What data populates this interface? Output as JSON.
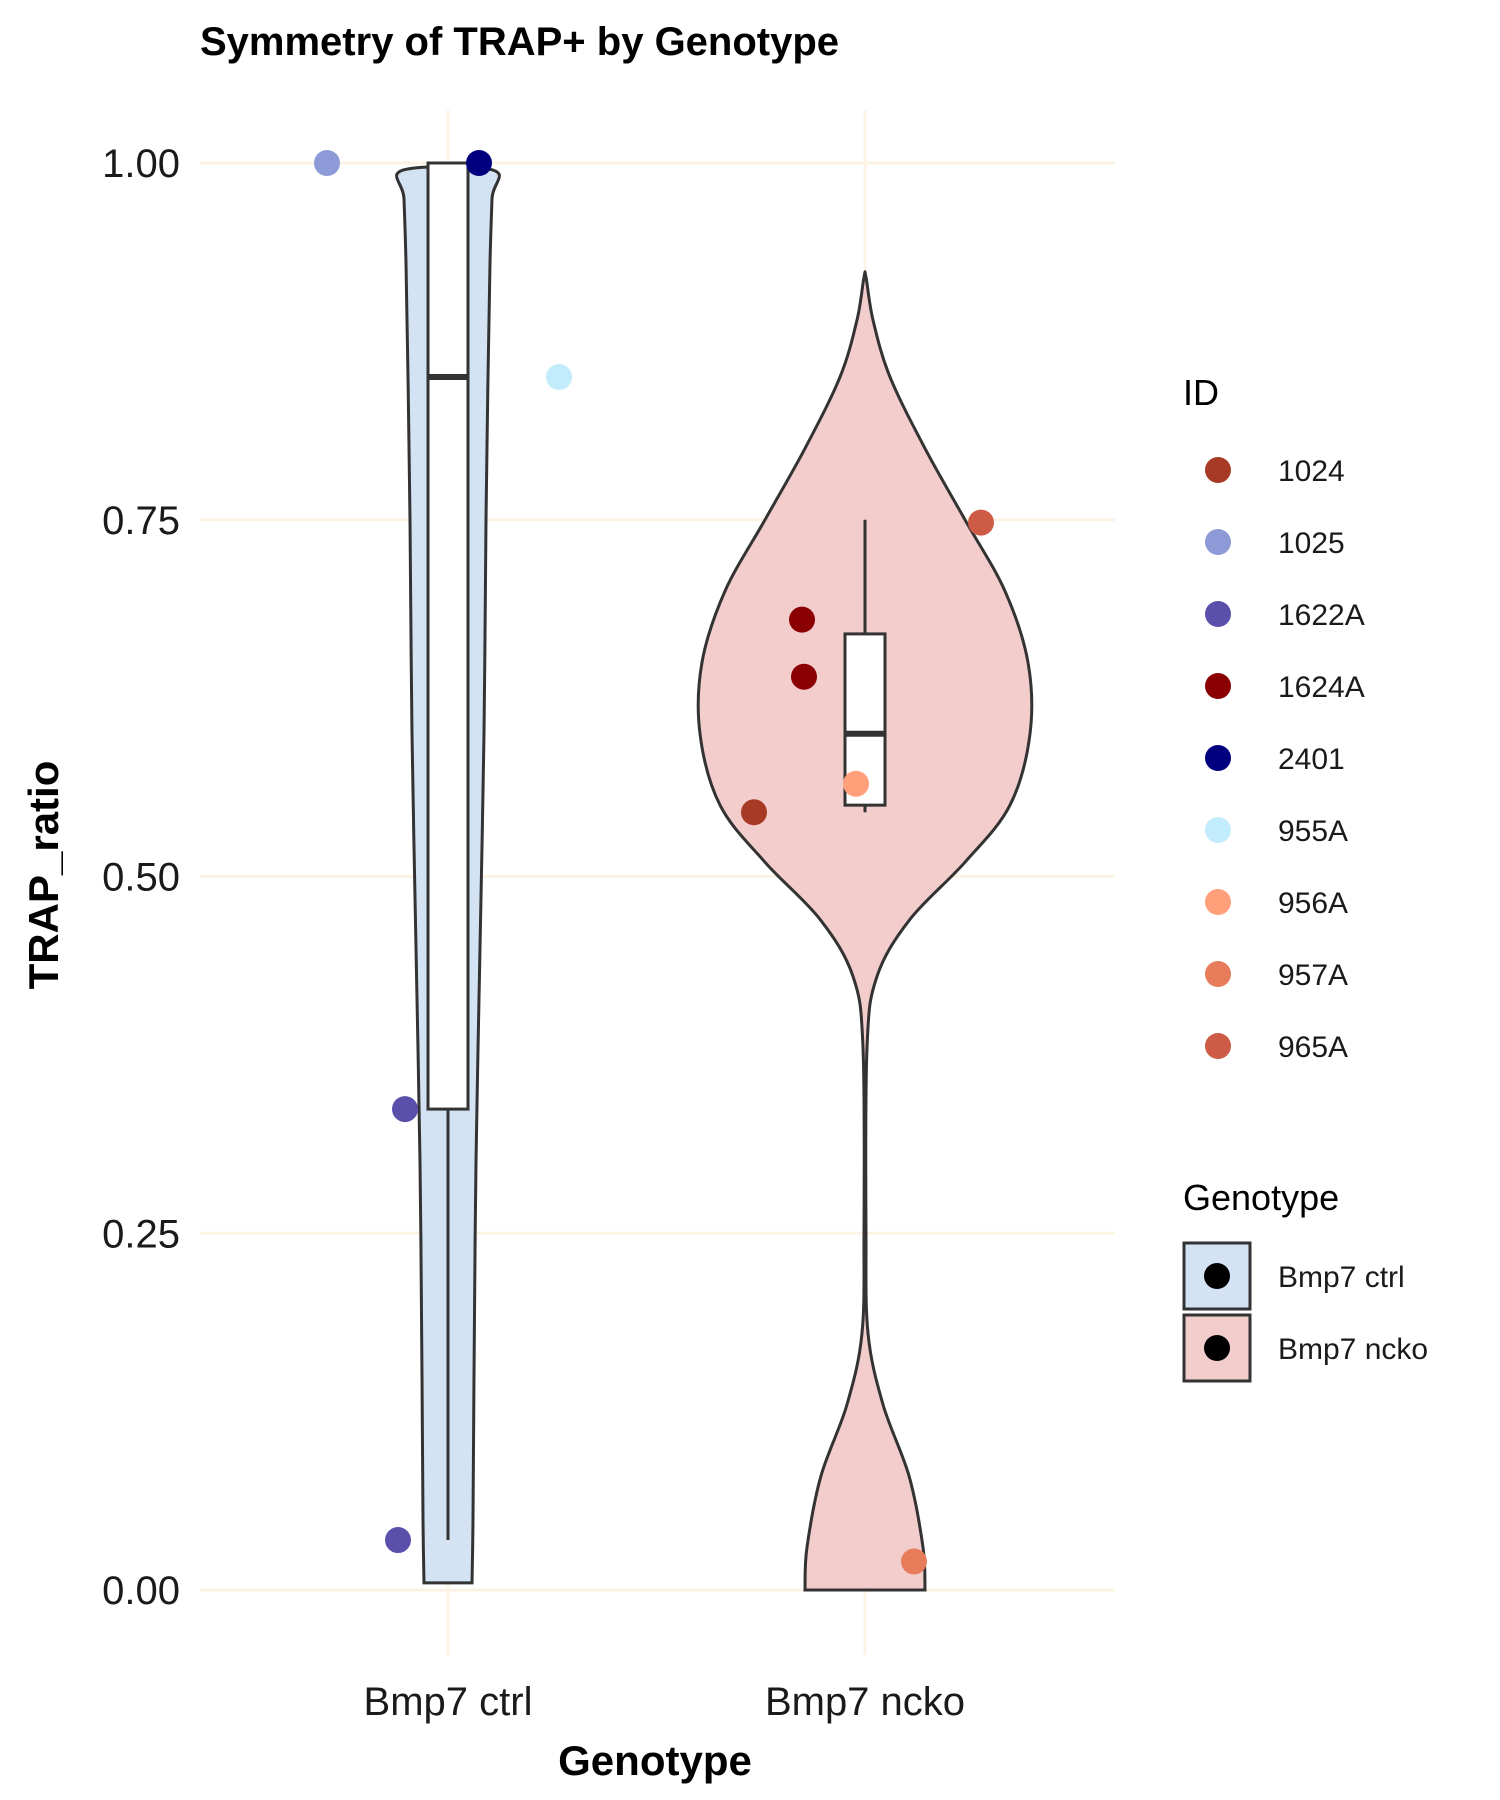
{
  "chart_data": {
    "type": "violin",
    "title": "Symmetry of TRAP+ by Genotype",
    "xlabel": "Genotype",
    "ylabel": "TRAP_ratio",
    "ylim": [
      -0.05,
      1.06
    ],
    "y_ticks": [
      "0.00",
      "0.25",
      "0.50",
      "0.75",
      "1.00"
    ],
    "y_tick_values": [
      0,
      0.25,
      0.5,
      0.75,
      1.0
    ],
    "grid": true,
    "categories": [
      "Bmp7 ctrl",
      "Bmp7 ncko"
    ],
    "groups": [
      {
        "name": "Bmp7 ctrl",
        "fill": "#d3e3f4",
        "violin": {
          "min": 0.005,
          "max": 0.995
        },
        "box": {
          "whisker_low": 0.035,
          "q1": 0.337,
          "median": 0.85,
          "q3": 1.0,
          "whisker_high": 1.0
        },
        "points": [
          {
            "id": "1025",
            "y": 1.0
          },
          {
            "id": "2401",
            "y": 1.0
          },
          {
            "id": "955A",
            "y": 0.85
          },
          {
            "id": "1622A",
            "y": 0.337
          },
          {
            "id": "1622A",
            "y": 0.035
          }
        ]
      },
      {
        "name": "Bmp7 ncko",
        "fill": "#f3cccc",
        "violin": {
          "min": 0.0,
          "max": 0.92
        },
        "box": {
          "whisker_low": 0.545,
          "q1": 0.55,
          "median": 0.6,
          "q3": 0.67,
          "whisker_high": 0.75
        },
        "points": [
          {
            "id": "965A",
            "y": 0.748
          },
          {
            "id": "1624A",
            "y": 0.68
          },
          {
            "id": "1624A",
            "y": 0.64
          },
          {
            "id": "956A",
            "y": 0.565
          },
          {
            "id": "1024",
            "y": 0.545
          },
          {
            "id": "957A",
            "y": 0.02
          }
        ]
      }
    ],
    "legend": {
      "placement": "right",
      "id_title": "ID",
      "ids": [
        {
          "label": "1024",
          "color": "#a63a24"
        },
        {
          "label": "1025",
          "color": "#8c9bd8"
        },
        {
          "label": "1622A",
          "color": "#5a4fab"
        },
        {
          "label": "1624A",
          "color": "#8b0000"
        },
        {
          "label": "2401",
          "color": "#00007f"
        },
        {
          "label": "955A",
          "color": "#c2ecfb"
        },
        {
          "label": "956A",
          "color": "#ffa07a"
        },
        {
          "label": "957A",
          "color": "#e67c5a"
        },
        {
          "label": "965A",
          "color": "#cd5b45"
        }
      ],
      "genotype_title": "Genotype",
      "genotypes": [
        {
          "label": "Bmp7 ctrl",
          "fill": "#d3e3f4"
        },
        {
          "label": "Bmp7 ncko",
          "fill": "#f3cccc"
        }
      ]
    }
  }
}
